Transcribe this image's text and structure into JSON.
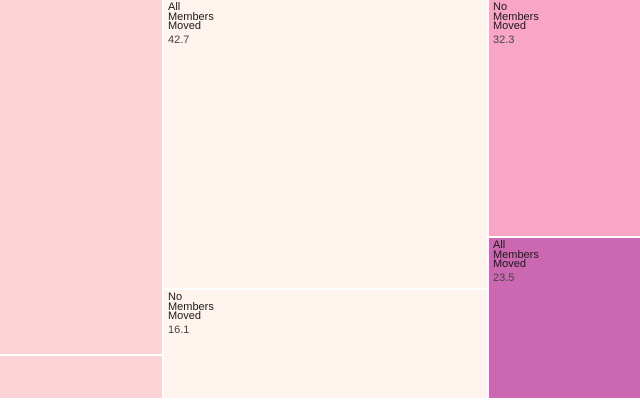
{
  "chart_data": {
    "type": "treemap",
    "title": "",
    "groups": [
      {
        "name": "",
        "color": "#fcd3d6",
        "children": [
          {
            "label": "",
            "value": null,
            "color": "#fcd3d6"
          },
          {
            "label": "",
            "value": null,
            "color": "#fcd3d6"
          }
        ]
      },
      {
        "name": "",
        "color": "#fff3ee",
        "children": [
          {
            "label": "All Members Moved",
            "value": 42.7,
            "color": "#fff3ee"
          },
          {
            "label": "No Members Moved",
            "value": 16.1,
            "color": "#fff3ee"
          }
        ]
      },
      {
        "name": "",
        "color": "#f9a5c6",
        "children": [
          {
            "label": "No Members Moved",
            "value": 32.3,
            "color": "#f9a5c6"
          },
          {
            "label": "All Members Moved",
            "value": 23.5,
            "color": "#cc67b1"
          }
        ]
      }
    ]
  }
}
